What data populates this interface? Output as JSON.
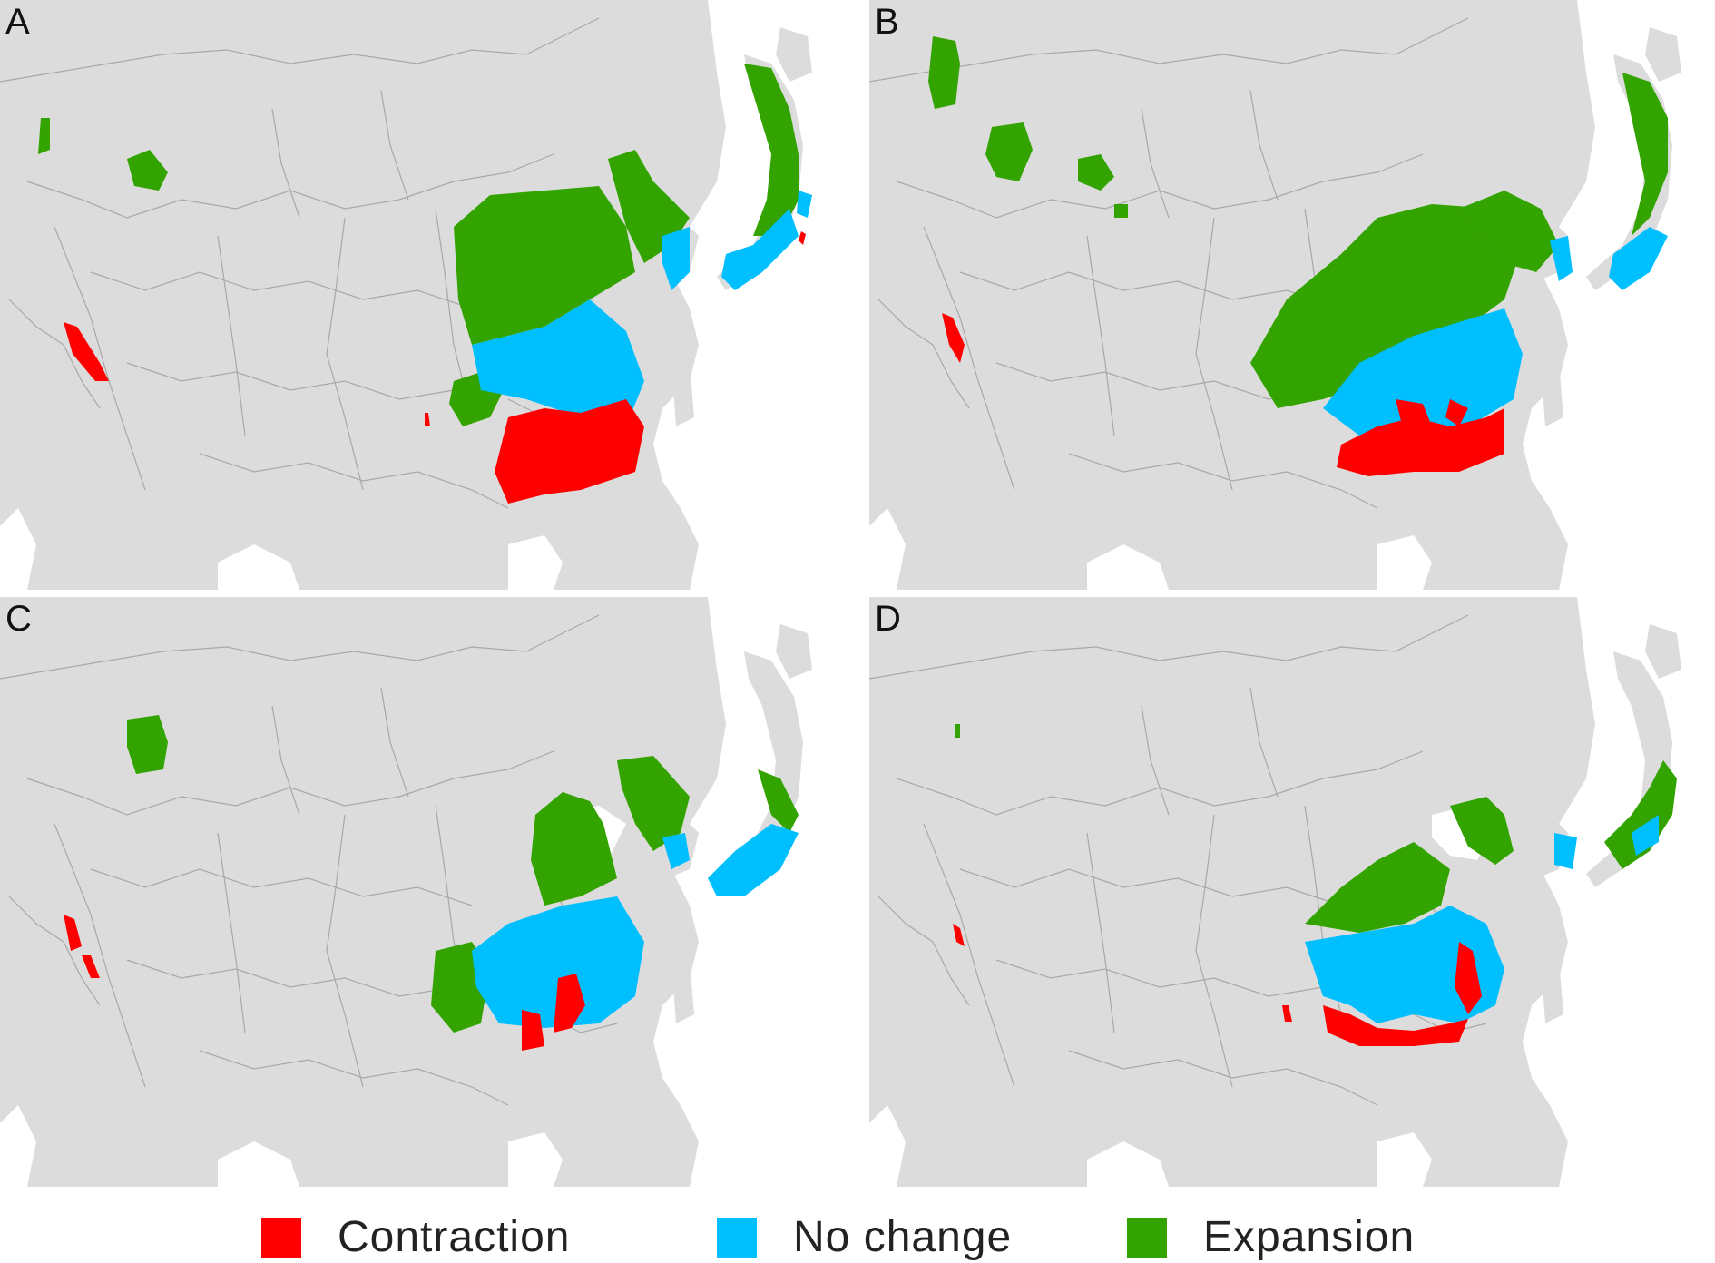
{
  "figure": {
    "panels": [
      {
        "id": "A",
        "label": "A"
      },
      {
        "id": "B",
        "label": "B"
      },
      {
        "id": "C",
        "label": "C"
      },
      {
        "id": "D",
        "label": "D"
      }
    ],
    "colors": {
      "land": "#dcdcdc",
      "sea": "#ffffff",
      "border": "#a8a8a8",
      "contraction": "#ff0000",
      "no_change": "#00bfff",
      "expansion": "#33a300"
    },
    "legend": [
      {
        "key": "contraction",
        "label": "Contraction",
        "color": "#ff0000"
      },
      {
        "key": "no_change",
        "label": "No change",
        "color": "#00bfff"
      },
      {
        "key": "expansion",
        "label": "Expansion",
        "color": "#33a300"
      }
    ]
  }
}
